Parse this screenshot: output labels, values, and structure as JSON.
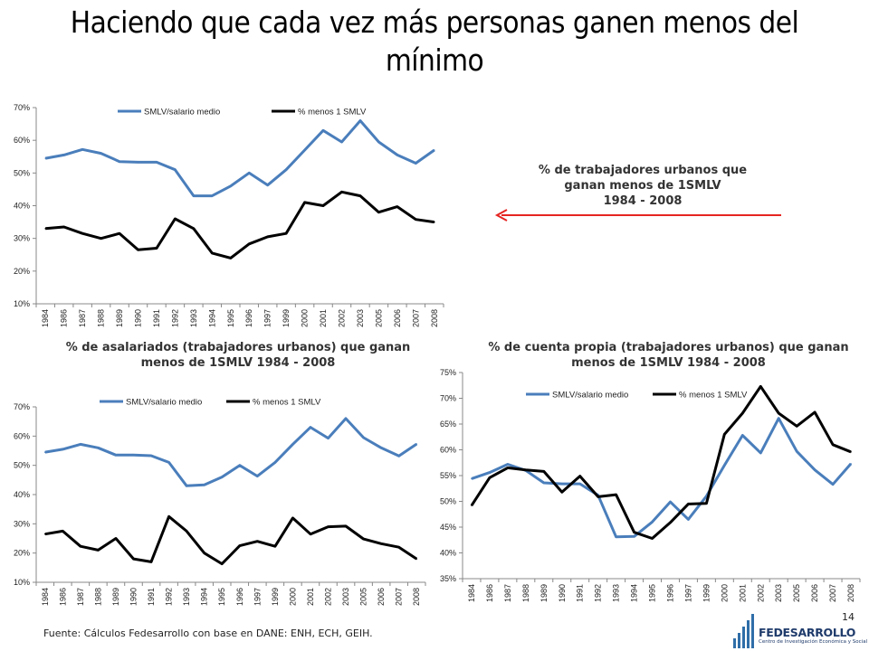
{
  "title": "Haciendo que cada vez más personas ganen menos del mínimo",
  "callout": {
    "line1": "% de trabajadores urbanos que",
    "line2": "ganan menos de 1SMLV",
    "line3": "1984 - 2008",
    "arrow_color": "#e52521"
  },
  "source": "Fuente: Cálculos Fedesarrollo con base en DANE: ENH, ECH, GEIH.",
  "slide_number": "14",
  "logo": {
    "name": "FEDESARROLLO",
    "tagline": "Centro de Investigación Económica y Social",
    "color": "#1f3b6b"
  },
  "chart_data": [
    {
      "type": "line",
      "title_lines": [],
      "x": [
        "1984",
        "1986",
        "1987",
        "1988",
        "1989",
        "1990",
        "1991",
        "1992",
        "1993",
        "1994",
        "1995",
        "1996",
        "1997",
        "1999",
        "2000",
        "2001",
        "2002",
        "2003",
        "2005",
        "2006",
        "2007",
        "2008"
      ],
      "ylim": [
        10,
        70
      ],
      "yticks": [
        10,
        20,
        30,
        40,
        50,
        60,
        70
      ],
      "ytick_labels": [
        "10%",
        "20%",
        "30%",
        "40%",
        "50%",
        "60%",
        "70%"
      ],
      "series": [
        {
          "name": "SMLV/salario medio",
          "color": "#4a7ebb",
          "values": [
            54.5,
            55.5,
            57.2,
            56.0,
            53.5,
            53.3,
            53.3,
            51.0,
            43.0,
            43.0,
            46.0,
            50.0,
            46.3,
            51.0,
            57.0,
            63.0,
            59.5,
            66.0,
            59.5,
            55.5,
            53.0,
            57.0
          ]
        },
        {
          "name": "% menos 1 SMLV",
          "color": "#000000",
          "values": [
            33.0,
            33.5,
            31.5,
            30.0,
            31.5,
            26.5,
            27.0,
            36.0,
            33.0,
            25.5,
            24.0,
            28.3,
            30.5,
            31.5,
            41.0,
            40.0,
            44.2,
            43.0,
            38.0,
            39.7,
            35.8,
            35.0
          ]
        }
      ]
    },
    {
      "type": "line",
      "title_lines": [
        "% de asalariados (trabajadores urbanos) que ganan",
        "menos de 1SMLV 1984 - 2008"
      ],
      "x": [
        "1984",
        "1986",
        "1987",
        "1988",
        "1989",
        "1990",
        "1991",
        "1992",
        "1993",
        "1994",
        "1995",
        "1996",
        "1997",
        "1999",
        "2000",
        "2001",
        "2002",
        "2003",
        "2005",
        "2006",
        "2007",
        "2008"
      ],
      "ylim": [
        10,
        70
      ],
      "yticks": [
        10,
        20,
        30,
        40,
        50,
        60,
        70
      ],
      "ytick_labels": [
        "10%",
        "20%",
        "30%",
        "40%",
        "50%",
        "60%",
        "70%"
      ],
      "series": [
        {
          "name": "SMLV/salario medio",
          "color": "#4a7ebb",
          "values": [
            54.5,
            55.5,
            57.2,
            56.0,
            53.5,
            53.5,
            53.3,
            51.0,
            43.0,
            43.3,
            46.0,
            50.0,
            46.3,
            51.0,
            57.2,
            63.0,
            59.3,
            66.0,
            59.5,
            56.0,
            53.2,
            57.3
          ]
        },
        {
          "name": "% menos 1 SMLV",
          "color": "#000000",
          "values": [
            26.5,
            27.5,
            22.3,
            21.0,
            25.0,
            18.0,
            17.0,
            32.5,
            27.5,
            20.0,
            16.3,
            22.5,
            24.0,
            22.3,
            32.0,
            26.5,
            29.0,
            29.2,
            24.8,
            23.2,
            22.0,
            18.0
          ]
        }
      ]
    },
    {
      "type": "line",
      "title_lines": [
        "% de cuenta propia (trabajadores urbanos) que ganan",
        "menos de 1SMLV 1984 - 2008"
      ],
      "x": [
        "1984",
        "1986",
        "1987",
        "1988",
        "1989",
        "1990",
        "1991",
        "1992",
        "1993",
        "1994",
        "1995",
        "1996",
        "1997",
        "1999",
        "2000",
        "2001",
        "2002",
        "2003",
        "2005",
        "2006",
        "2007",
        "2008"
      ],
      "ylim": [
        35,
        75
      ],
      "yticks": [
        35,
        40,
        45,
        50,
        55,
        60,
        65,
        70,
        75
      ],
      "ytick_labels": [
        "35%",
        "40%",
        "45%",
        "50%",
        "55%",
        "60%",
        "65%",
        "70%",
        "75%"
      ],
      "series": [
        {
          "name": "SMLV/salario medio",
          "color": "#4a7ebb",
          "values": [
            54.4,
            55.6,
            57.2,
            56.0,
            53.6,
            53.4,
            53.4,
            51.2,
            43.1,
            43.2,
            46.0,
            49.9,
            46.5,
            51.0,
            57.0,
            62.8,
            59.4,
            66.1,
            59.7,
            56.1,
            53.3,
            57.3
          ]
        },
        {
          "name": "% menos 1 SMLV",
          "color": "#000000",
          "values": [
            49.2,
            54.6,
            56.5,
            56.1,
            55.8,
            51.8,
            54.9,
            50.9,
            51.3,
            44.0,
            42.8,
            45.9,
            49.5,
            49.6,
            63.0,
            67.1,
            72.3,
            67.1,
            64.6,
            67.3,
            61.0,
            59.6
          ]
        }
      ]
    }
  ]
}
